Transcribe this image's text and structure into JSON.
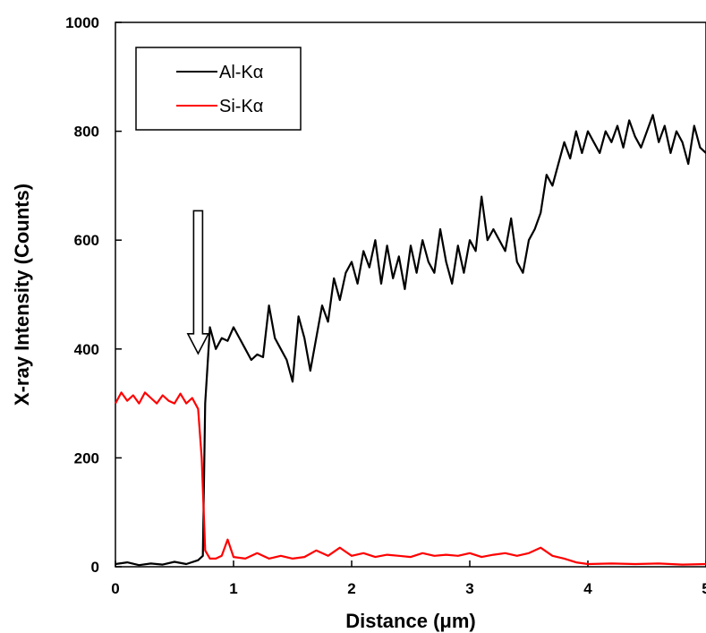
{
  "chart_data": {
    "type": "line",
    "title": "",
    "xlabel": "Distance (μm)",
    "ylabel": "X-ray Intensity (Counts)",
    "xlim": [
      0,
      5
    ],
    "ylim": [
      0,
      1000
    ],
    "x_ticks": [
      "0",
      "1",
      "2",
      "3",
      "4",
      "5"
    ],
    "y_ticks": [
      "0",
      "200",
      "400",
      "600",
      "800",
      "1000"
    ],
    "grid": false,
    "legend_position": "top-left",
    "annotation": {
      "type": "down-arrow",
      "x": 0.7,
      "y": 440,
      "tip_y": 395
    },
    "series": [
      {
        "name": "Al-Kα",
        "color": "#000000",
        "x": [
          0,
          0.1,
          0.2,
          0.3,
          0.4,
          0.5,
          0.6,
          0.7,
          0.74,
          0.76,
          0.8,
          0.85,
          0.9,
          0.95,
          1.0,
          1.05,
          1.1,
          1.15,
          1.2,
          1.25,
          1.3,
          1.35,
          1.4,
          1.45,
          1.5,
          1.55,
          1.6,
          1.65,
          1.7,
          1.75,
          1.8,
          1.85,
          1.9,
          1.95,
          2.0,
          2.05,
          2.1,
          2.15,
          2.2,
          2.25,
          2.3,
          2.35,
          2.4,
          2.45,
          2.5,
          2.55,
          2.6,
          2.65,
          2.7,
          2.75,
          2.8,
          2.85,
          2.9,
          2.95,
          3.0,
          3.05,
          3.1,
          3.15,
          3.2,
          3.25,
          3.3,
          3.35,
          3.4,
          3.45,
          3.5,
          3.55,
          3.6,
          3.65,
          3.7,
          3.75,
          3.8,
          3.85,
          3.9,
          3.95,
          4.0,
          4.05,
          4.1,
          4.15,
          4.2,
          4.25,
          4.3,
          4.35,
          4.4,
          4.45,
          4.5,
          4.55,
          4.6,
          4.65,
          4.7,
          4.75,
          4.8,
          4.85,
          4.9,
          4.95,
          5.0
        ],
        "y": [
          5,
          8,
          3,
          6,
          4,
          9,
          5,
          12,
          20,
          300,
          440,
          400,
          420,
          415,
          440,
          420,
          400,
          380,
          390,
          385,
          480,
          420,
          400,
          380,
          340,
          460,
          420,
          360,
          420,
          480,
          450,
          530,
          490,
          540,
          560,
          520,
          580,
          550,
          600,
          520,
          590,
          530,
          570,
          510,
          590,
          540,
          600,
          560,
          540,
          620,
          560,
          520,
          590,
          540,
          600,
          580,
          680,
          600,
          620,
          600,
          580,
          640,
          560,
          540,
          600,
          620,
          650,
          720,
          700,
          740,
          780,
          750,
          800,
          760,
          800,
          780,
          760,
          800,
          780,
          810,
          770,
          820,
          790,
          770,
          800,
          830,
          780,
          810,
          760,
          800,
          780,
          740,
          810,
          770,
          760
        ]
      },
      {
        "name": "Si-Kα",
        "color": "#ff0000",
        "x": [
          0,
          0.05,
          0.1,
          0.15,
          0.2,
          0.25,
          0.3,
          0.35,
          0.4,
          0.45,
          0.5,
          0.55,
          0.6,
          0.65,
          0.7,
          0.73,
          0.76,
          0.8,
          0.85,
          0.9,
          0.95,
          1.0,
          1.1,
          1.2,
          1.3,
          1.4,
          1.5,
          1.6,
          1.7,
          1.8,
          1.9,
          2.0,
          2.1,
          2.2,
          2.3,
          2.4,
          2.5,
          2.6,
          2.7,
          2.8,
          2.9,
          3.0,
          3.1,
          3.2,
          3.3,
          3.4,
          3.5,
          3.6,
          3.7,
          3.8,
          3.9,
          4.0,
          4.2,
          4.4,
          4.6,
          4.8,
          5.0
        ],
        "y": [
          300,
          320,
          305,
          315,
          300,
          320,
          310,
          300,
          315,
          305,
          300,
          318,
          300,
          310,
          290,
          200,
          30,
          15,
          15,
          20,
          50,
          18,
          15,
          25,
          15,
          20,
          15,
          18,
          30,
          20,
          35,
          20,
          25,
          18,
          22,
          20,
          18,
          25,
          20,
          22,
          20,
          25,
          18,
          22,
          25,
          20,
          25,
          35,
          20,
          15,
          8,
          5,
          6,
          5,
          6,
          4,
          5
        ]
      }
    ]
  }
}
